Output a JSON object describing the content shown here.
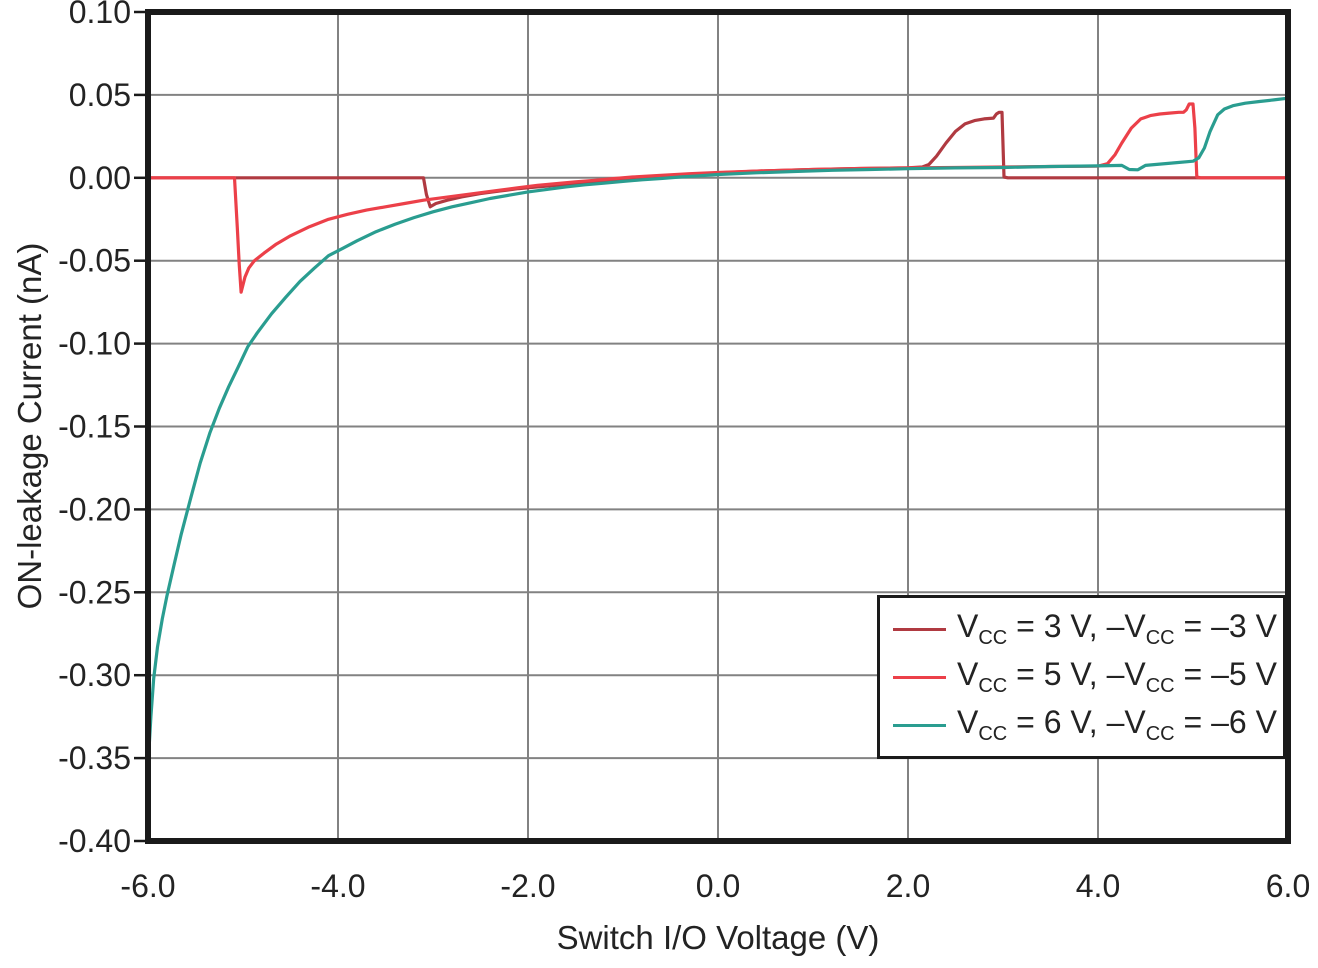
{
  "figure": {
    "background": "#ffffff",
    "text_color": "#232323",
    "frame_color": "#1a1a1a",
    "grid_color": "#828282"
  },
  "chart_data": {
    "type": "line",
    "title": "",
    "xlabel": "Switch I/O Voltage (V)",
    "ylabel": "ON-leakage Current (nA)",
    "xlim": [
      -6,
      6
    ],
    "ylim": [
      -0.4,
      0.1
    ],
    "grid": true,
    "legend_position": "lower right",
    "x_ticks": {
      "values": [
        -6,
        -4,
        -2,
        0,
        2,
        4,
        6
      ],
      "labels": [
        "-6.0",
        "-4.0",
        "-2.0",
        "0.0",
        "2.0",
        "4.0",
        "6.0"
      ]
    },
    "y_ticks": {
      "values": [
        0.1,
        0.05,
        0.0,
        -0.05,
        -0.1,
        -0.15,
        -0.2,
        -0.25,
        -0.3,
        -0.35,
        -0.4
      ],
      "labels": [
        "0.10",
        "0.05",
        "0.00",
        "-0.05",
        "-0.10",
        "-0.15",
        "-0.20",
        "-0.25",
        "-0.30",
        "-0.35",
        "-0.40"
      ]
    },
    "legend": {
      "entries": [
        {
          "name": "VCC = 3 V, -VCC = -3 V",
          "color": "#b03a41",
          "segments": [
            {
              "t": "V"
            },
            {
              "t": "CC",
              "sub": true
            },
            {
              "t": " = 3 V, –V"
            },
            {
              "t": "CC",
              "sub": true
            },
            {
              "t": " = –3 V"
            }
          ]
        },
        {
          "name": "VCC = 5 V, -VCC = -5 V",
          "color": "#ec4049",
          "segments": [
            {
              "t": "V"
            },
            {
              "t": "CC",
              "sub": true
            },
            {
              "t": " = 5 V, –V"
            },
            {
              "t": "CC",
              "sub": true
            },
            {
              "t": " = –5 V"
            }
          ]
        },
        {
          "name": "VCC = 6 V, -VCC = -6 V",
          "color": "#2a9d90",
          "segments": [
            {
              "t": "V"
            },
            {
              "t": "CC",
              "sub": true
            },
            {
              "t": " = 6 V, –V"
            },
            {
              "t": "CC",
              "sub": true
            },
            {
              "t": " = –6 V"
            }
          ]
        }
      ]
    },
    "series": [
      {
        "name": "VCC = 3 V, -VCC = -3 V",
        "color": "#b03a41",
        "points": [
          [
            -6.0,
            0.0
          ],
          [
            -3.1,
            0.0
          ],
          [
            -3.07,
            -0.01
          ],
          [
            -3.03,
            -0.0175
          ],
          [
            -2.97,
            -0.0155
          ],
          [
            -2.85,
            -0.0135
          ],
          [
            -2.7,
            -0.0115
          ],
          [
            -2.5,
            -0.0095
          ],
          [
            -2.3,
            -0.008
          ],
          [
            -2.1,
            -0.0065
          ],
          [
            -1.9,
            -0.0055
          ],
          [
            -1.7,
            -0.0045
          ],
          [
            -1.5,
            -0.0035
          ],
          [
            -1.3,
            -0.0025
          ],
          [
            -1.1,
            -0.0015
          ],
          [
            -0.9,
            -0.0005
          ],
          [
            -0.7,
            0.0005
          ],
          [
            -0.5,
            0.0015
          ],
          [
            -0.2,
            0.0025
          ],
          [
            0.0,
            0.003
          ],
          [
            0.5,
            0.0042
          ],
          [
            1.0,
            0.005
          ],
          [
            1.5,
            0.0056
          ],
          [
            2.0,
            0.006
          ],
          [
            2.15,
            0.0065
          ],
          [
            2.22,
            0.008
          ],
          [
            2.3,
            0.013
          ],
          [
            2.4,
            0.021
          ],
          [
            2.5,
            0.028
          ],
          [
            2.6,
            0.0325
          ],
          [
            2.7,
            0.0345
          ],
          [
            2.8,
            0.0355
          ],
          [
            2.9,
            0.036
          ],
          [
            2.93,
            0.0385
          ],
          [
            2.96,
            0.0395
          ],
          [
            2.99,
            0.0395
          ],
          [
            3.01,
            0.0005
          ],
          [
            3.05,
            0.0
          ],
          [
            6.0,
            0.0
          ]
        ]
      },
      {
        "name": "VCC = 5 V, -VCC = -5 V",
        "color": "#ec4049",
        "points": [
          [
            -6.0,
            0.0
          ],
          [
            -5.09,
            0.0
          ],
          [
            -5.06,
            -0.03
          ],
          [
            -5.04,
            -0.052
          ],
          [
            -5.02,
            -0.069
          ],
          [
            -4.98,
            -0.06
          ],
          [
            -4.94,
            -0.0545
          ],
          [
            -4.88,
            -0.05
          ],
          [
            -4.78,
            -0.0455
          ],
          [
            -4.65,
            -0.04
          ],
          [
            -4.5,
            -0.035
          ],
          [
            -4.3,
            -0.0295
          ],
          [
            -4.1,
            -0.025
          ],
          [
            -3.9,
            -0.022
          ],
          [
            -3.7,
            -0.0195
          ],
          [
            -3.5,
            -0.0175
          ],
          [
            -3.3,
            -0.0155
          ],
          [
            -3.1,
            -0.0135
          ],
          [
            -2.9,
            -0.012
          ],
          [
            -2.7,
            -0.0105
          ],
          [
            -2.5,
            -0.009
          ],
          [
            -2.3,
            -0.0075
          ],
          [
            -2.1,
            -0.006
          ],
          [
            -1.9,
            -0.0045
          ],
          [
            -1.7,
            -0.0035
          ],
          [
            -1.5,
            -0.0025
          ],
          [
            -1.3,
            -0.0015
          ],
          [
            -1.1,
            -0.0005
          ],
          [
            -0.9,
            0.0005
          ],
          [
            -0.6,
            0.0015
          ],
          [
            -0.3,
            0.0025
          ],
          [
            0.0,
            0.0032
          ],
          [
            0.5,
            0.0042
          ],
          [
            1.0,
            0.005
          ],
          [
            1.5,
            0.0056
          ],
          [
            2.0,
            0.006
          ],
          [
            2.5,
            0.0062
          ],
          [
            3.0,
            0.0065
          ],
          [
            3.5,
            0.0068
          ],
          [
            4.0,
            0.007
          ],
          [
            4.1,
            0.0085
          ],
          [
            4.18,
            0.014
          ],
          [
            4.25,
            0.021
          ],
          [
            4.35,
            0.03
          ],
          [
            4.45,
            0.0355
          ],
          [
            4.55,
            0.0375
          ],
          [
            4.65,
            0.0385
          ],
          [
            4.75,
            0.039
          ],
          [
            4.85,
            0.0395
          ],
          [
            4.9,
            0.0395
          ],
          [
            4.93,
            0.041
          ],
          [
            4.96,
            0.0445
          ],
          [
            5.0,
            0.0445
          ],
          [
            5.02,
            0.03
          ],
          [
            5.04,
            0.0005
          ],
          [
            5.08,
            0.0
          ],
          [
            6.0,
            0.0
          ]
        ]
      },
      {
        "name": "VCC = 6 V, -VCC = -6 V",
        "color": "#2a9d90",
        "points": [
          [
            -6.0,
            -0.355
          ],
          [
            -5.97,
            -0.325
          ],
          [
            -5.94,
            -0.302
          ],
          [
            -5.9,
            -0.283
          ],
          [
            -5.85,
            -0.266
          ],
          [
            -5.8,
            -0.252
          ],
          [
            -5.72,
            -0.232
          ],
          [
            -5.65,
            -0.215
          ],
          [
            -5.55,
            -0.193
          ],
          [
            -5.45,
            -0.172
          ],
          [
            -5.35,
            -0.154
          ],
          [
            -5.25,
            -0.139
          ],
          [
            -5.15,
            -0.126
          ],
          [
            -5.05,
            -0.114
          ],
          [
            -4.95,
            -0.102
          ],
          [
            -4.85,
            -0.0935
          ],
          [
            -4.7,
            -0.082
          ],
          [
            -4.55,
            -0.072
          ],
          [
            -4.4,
            -0.0625
          ],
          [
            -4.25,
            -0.0545
          ],
          [
            -4.1,
            -0.047
          ],
          [
            -3.95,
            -0.0425
          ],
          [
            -3.8,
            -0.038
          ],
          [
            -3.6,
            -0.0325
          ],
          [
            -3.4,
            -0.028
          ],
          [
            -3.2,
            -0.024
          ],
          [
            -3.0,
            -0.0205
          ],
          [
            -2.8,
            -0.0175
          ],
          [
            -2.6,
            -0.015
          ],
          [
            -2.4,
            -0.0125
          ],
          [
            -2.2,
            -0.0105
          ],
          [
            -2.0,
            -0.0085
          ],
          [
            -1.8,
            -0.007
          ],
          [
            -1.6,
            -0.0055
          ],
          [
            -1.4,
            -0.0042
          ],
          [
            -1.2,
            -0.0032
          ],
          [
            -1.0,
            -0.0022
          ],
          [
            -0.8,
            -0.0012
          ],
          [
            -0.6,
            -0.0004
          ],
          [
            -0.4,
            0.0005
          ],
          [
            -0.2,
            0.0012
          ],
          [
            0.0,
            0.002
          ],
          [
            0.4,
            0.003
          ],
          [
            0.8,
            0.0038
          ],
          [
            1.2,
            0.0045
          ],
          [
            1.6,
            0.005
          ],
          [
            2.0,
            0.0055
          ],
          [
            2.5,
            0.006
          ],
          [
            3.0,
            0.0062
          ],
          [
            3.5,
            0.0068
          ],
          [
            4.0,
            0.0072
          ],
          [
            4.25,
            0.0075
          ],
          [
            4.33,
            0.005
          ],
          [
            4.42,
            0.0048
          ],
          [
            4.5,
            0.0075
          ],
          [
            4.8,
            0.009
          ],
          [
            5.0,
            0.01
          ],
          [
            5.06,
            0.012
          ],
          [
            5.12,
            0.018
          ],
          [
            5.18,
            0.028
          ],
          [
            5.26,
            0.038
          ],
          [
            5.33,
            0.0415
          ],
          [
            5.42,
            0.0435
          ],
          [
            5.55,
            0.045
          ],
          [
            5.7,
            0.046
          ],
          [
            5.85,
            0.047
          ],
          [
            6.0,
            0.048
          ]
        ]
      }
    ]
  }
}
